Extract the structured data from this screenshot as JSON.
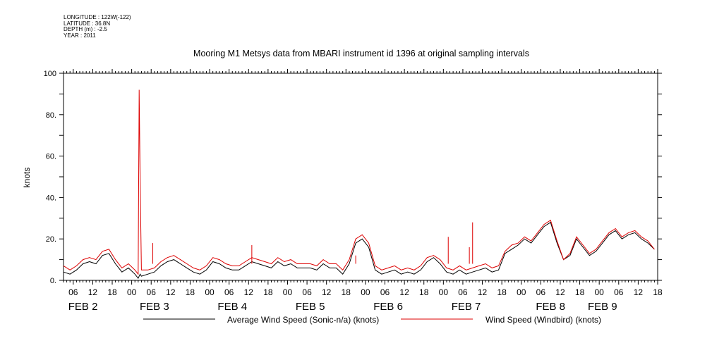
{
  "meta": {
    "longitude": "LONGITUDE : 122W(-122)",
    "latitude": "LATITUDE : 36.8N",
    "depth": "DEPTH (m) : -2.5",
    "year": "YEAR : 2011"
  },
  "chart_data": {
    "type": "line",
    "title": "Mooring M1 Metsys data from MBARI instrument id 1396 at original sampling intervals",
    "ylabel": "knots",
    "xlabel": "",
    "ylim": [
      0,
      100
    ],
    "xlim_hours": [
      -21,
      162
    ],
    "y_ticks": [
      {
        "v": 0,
        "label": "0."
      },
      {
        "v": 20,
        "label": "20."
      },
      {
        "v": 40,
        "label": "40."
      },
      {
        "v": 60,
        "label": "60."
      },
      {
        "v": 80,
        "label": "80."
      },
      {
        "v": 100,
        "label": "100"
      }
    ],
    "x_hour_ticks": [
      {
        "h": -18,
        "label": "06"
      },
      {
        "h": -12,
        "label": "12"
      },
      {
        "h": -6,
        "label": "18"
      },
      {
        "h": 0,
        "label": "00"
      },
      {
        "h": 6,
        "label": "06"
      },
      {
        "h": 12,
        "label": "12"
      },
      {
        "h": 18,
        "label": "18"
      },
      {
        "h": 24,
        "label": "00"
      },
      {
        "h": 30,
        "label": "06"
      },
      {
        "h": 36,
        "label": "12"
      },
      {
        "h": 42,
        "label": "18"
      },
      {
        "h": 48,
        "label": "00"
      },
      {
        "h": 54,
        "label": "06"
      },
      {
        "h": 60,
        "label": "12"
      },
      {
        "h": 66,
        "label": "18"
      },
      {
        "h": 72,
        "label": "00"
      },
      {
        "h": 78,
        "label": "06"
      },
      {
        "h": 84,
        "label": "12"
      },
      {
        "h": 90,
        "label": "18"
      },
      {
        "h": 96,
        "label": "00"
      },
      {
        "h": 102,
        "label": "06"
      },
      {
        "h": 108,
        "label": "12"
      },
      {
        "h": 114,
        "label": "18"
      },
      {
        "h": 120,
        "label": "00"
      },
      {
        "h": 126,
        "label": "06"
      },
      {
        "h": 132,
        "label": "12"
      },
      {
        "h": 138,
        "label": "18"
      },
      {
        "h": 144,
        "label": "00"
      },
      {
        "h": 150,
        "label": "06"
      },
      {
        "h": 156,
        "label": "12"
      },
      {
        "h": 162,
        "label": "18"
      }
    ],
    "date_labels": [
      {
        "h": -15,
        "label": "FEB  2"
      },
      {
        "h": 7,
        "label": "FEB  3"
      },
      {
        "h": 31,
        "label": "FEB  4"
      },
      {
        "h": 55,
        "label": "FEB  5"
      },
      {
        "h": 79,
        "label": "FEB  6"
      },
      {
        "h": 103,
        "label": "FEB  7"
      },
      {
        "h": 129,
        "label": "FEB  8"
      },
      {
        "h": 145,
        "label": "FEB  9"
      }
    ],
    "legend_placement": "bottom",
    "series": [
      {
        "name": "Average Wind Speed (Sonic-n/a) (knots)",
        "color": "#000000",
        "x": [
          -21,
          -19,
          -17,
          -15,
          -13,
          -11,
          -9,
          -7,
          -5,
          -3,
          -1,
          1,
          2,
          2.6,
          3,
          5,
          7,
          9,
          11,
          13,
          15,
          17,
          19,
          21,
          23,
          25,
          27,
          29,
          31,
          33,
          35,
          37,
          39,
          41,
          43,
          45,
          47,
          49,
          51,
          53,
          55,
          57,
          59,
          61,
          63,
          65,
          67,
          69,
          71,
          73,
          75,
          77,
          79,
          81,
          83,
          85,
          87,
          89,
          91,
          93,
          95,
          97,
          99,
          101,
          103,
          105,
          107,
          109,
          111,
          113,
          115,
          117,
          119,
          121,
          123,
          125,
          127,
          129,
          131,
          133,
          135,
          137,
          139,
          141,
          143,
          145,
          147,
          149,
          151,
          153,
          155,
          157,
          159,
          161
        ],
        "y": [
          4,
          3,
          5,
          8,
          9,
          8,
          12,
          13,
          8,
          4,
          6,
          3,
          1,
          3,
          2,
          3,
          4,
          7,
          9,
          10,
          8,
          6,
          4,
          3,
          5,
          9,
          8,
          6,
          5,
          5,
          7,
          9,
          8,
          7,
          6,
          9,
          7,
          8,
          6,
          6,
          6,
          5,
          8,
          6,
          6,
          3,
          8,
          18,
          20,
          16,
          5,
          3,
          4,
          5,
          3,
          4,
          3,
          5,
          9,
          11,
          8,
          4,
          3,
          5,
          3,
          4,
          5,
          6,
          4,
          5,
          13,
          15,
          17,
          20,
          18,
          22,
          26,
          28,
          18,
          10,
          12,
          20,
          16,
          12,
          14,
          18,
          22,
          24,
          20,
          22,
          23,
          20,
          18,
          15
        ]
      },
      {
        "name": "Wind Speed (Windbird) (knots)",
        "color": "#dd0000",
        "x": [
          -21,
          -19,
          -17,
          -15,
          -13,
          -11,
          -9,
          -7,
          -5,
          -3,
          -1,
          1,
          2,
          2.3,
          2.6,
          3,
          5,
          7,
          9,
          11,
          13,
          15,
          17,
          19,
          21,
          23,
          25,
          27,
          29,
          31,
          33,
          35,
          37,
          39,
          41,
          43,
          45,
          47,
          49,
          51,
          53,
          55,
          57,
          59,
          61,
          63,
          65,
          67,
          69,
          71,
          73,
          75,
          77,
          79,
          81,
          83,
          85,
          87,
          89,
          91,
          93,
          95,
          97,
          99,
          101,
          103,
          105,
          107,
          109,
          111,
          113,
          115,
          117,
          119,
          121,
          123,
          125,
          127,
          129,
          131,
          133,
          135,
          137,
          139,
          141,
          143,
          145,
          147,
          149,
          151,
          153,
          155,
          157,
          159,
          161
        ],
        "y": [
          7,
          5,
          7,
          10,
          11,
          10,
          14,
          15,
          10,
          6,
          8,
          5,
          3,
          92,
          48,
          5,
          5,
          6,
          9,
          11,
          12,
          10,
          8,
          6,
          5,
          7,
          11,
          10,
          8,
          7,
          7,
          9,
          11,
          10,
          9,
          8,
          11,
          9,
          10,
          8,
          8,
          8,
          7,
          10,
          8,
          8,
          5,
          10,
          20,
          22,
          18,
          7,
          5,
          6,
          7,
          5,
          6,
          5,
          7,
          11,
          12,
          10,
          6,
          5,
          7,
          5,
          6,
          7,
          8,
          6,
          7,
          14,
          17,
          18,
          21,
          19,
          23,
          27,
          29,
          19,
          10,
          13,
          21,
          17,
          13,
          15,
          19,
          23,
          25,
          21,
          23,
          24,
          21,
          19,
          15
        ]
      }
    ],
    "spikes": [
      {
        "h": 6.5,
        "v": 18,
        "series": 1
      },
      {
        "h": 37,
        "v": 17,
        "series": 1
      },
      {
        "h": 69,
        "v": 12,
        "series": 1
      },
      {
        "h": 97.5,
        "v": 21,
        "series": 1
      },
      {
        "h": 105,
        "v": 28,
        "series": 1
      },
      {
        "h": 104,
        "v": 16,
        "series": 1
      }
    ]
  }
}
